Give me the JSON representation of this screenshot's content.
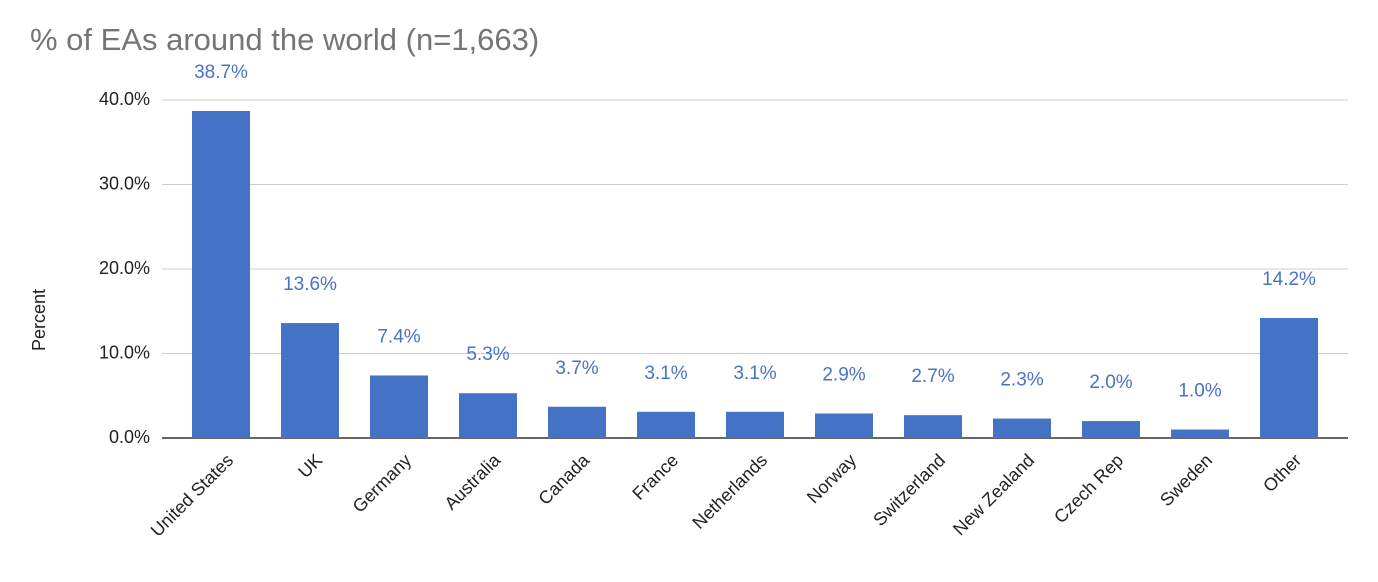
{
  "chart_data": {
    "type": "bar",
    "title": "% of EAs around the world (n=1,663)",
    "y_label": "Percent",
    "categories": [
      "United States",
      "UK",
      "Germany",
      "Australia",
      "Canada",
      "France",
      "Netherlands",
      "Norway",
      "Switzerland",
      "New Zealand",
      "Czech Rep",
      "Sweden",
      "Other"
    ],
    "values": [
      38.7,
      13.6,
      7.4,
      5.3,
      3.7,
      3.1,
      3.1,
      2.9,
      2.7,
      2.3,
      2.0,
      1.0,
      14.2
    ],
    "value_labels": [
      "38.7%",
      "13.6%",
      "7.4%",
      "5.3%",
      "3.7%",
      "3.1%",
      "3.1%",
      "2.9%",
      "2.7%",
      "2.3%",
      "2.0%",
      "1.0%",
      "14.2%"
    ],
    "color": "#4472c4",
    "ylim": [
      0,
      40
    ],
    "yticks": [
      {
        "value": 0,
        "label": "0.0%"
      },
      {
        "value": 10,
        "label": "10.0%"
      },
      {
        "value": 20,
        "label": "20.0%"
      },
      {
        "value": 30,
        "label": "30.0%"
      },
      {
        "value": 40,
        "label": "40.0%"
      }
    ],
    "grid": true
  }
}
